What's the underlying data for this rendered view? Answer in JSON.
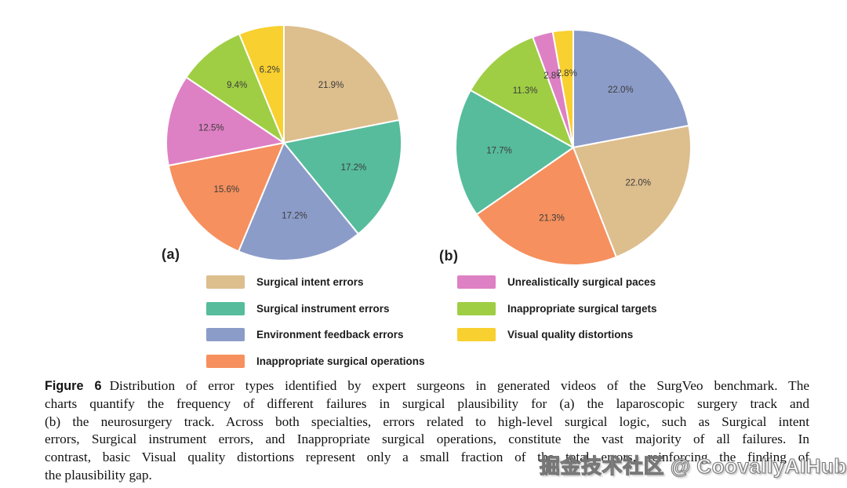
{
  "page": {
    "background": "#ffffff"
  },
  "chart_data": [
    {
      "type": "pie",
      "tag": "(a)",
      "track": "laparoscopic surgery track",
      "start_angle_deg": 0,
      "direction": "clockwise",
      "slices": [
        {
          "name": "Surgical intent errors",
          "value": 21.9,
          "label": "21.9%",
          "color": "#DDBE8D"
        },
        {
          "name": "Surgical instrument errors",
          "value": 17.2,
          "label": "17.2%",
          "color": "#56BC9C"
        },
        {
          "name": "Environment feedback errors",
          "value": 17.2,
          "label": "17.2%",
          "color": "#8C9CC9"
        },
        {
          "name": "Inappropriate surgical operations",
          "value": 15.6,
          "label": "15.6%",
          "color": "#F6905E"
        },
        {
          "name": "Unrealistically surgical paces",
          "value": 12.5,
          "label": "12.5%",
          "color": "#DE80C4"
        },
        {
          "name": "Inappropriate surgical targets",
          "value": 9.4,
          "label": "9.4%",
          "color": "#9FCE44"
        },
        {
          "name": "Visual quality distortions",
          "value": 6.2,
          "label": "6.2%",
          "color": "#F8D02F"
        }
      ]
    },
    {
      "type": "pie",
      "tag": "(b)",
      "track": "neurosurgery track",
      "start_angle_deg": 0,
      "direction": "clockwise",
      "slices": [
        {
          "name": "Environment feedback errors",
          "value": 22.0,
          "label": "22.0%",
          "color": "#8C9CC9"
        },
        {
          "name": "Surgical intent errors",
          "value": 22.0,
          "label": "22.0%",
          "color": "#DDBE8D"
        },
        {
          "name": "Inappropriate surgical operations",
          "value": 21.3,
          "label": "21.3%",
          "color": "#F6905E"
        },
        {
          "name": "Surgical instrument errors",
          "value": 17.7,
          "label": "17.7%",
          "color": "#56BC9C"
        },
        {
          "name": "Inappropriate surgical targets",
          "value": 11.3,
          "label": "11.3%",
          "color": "#9FCE44"
        },
        {
          "name": "Unrealistically surgical paces",
          "value": 2.8,
          "label": "2.8%",
          "color": "#DE80C4"
        },
        {
          "name": "Visual quality distortions",
          "value": 2.8,
          "label": "2.8%",
          "color": "#F8D02F"
        }
      ]
    }
  ],
  "legend": {
    "columns": [
      {
        "items": [
          {
            "label": "Surgical intent errors",
            "color": "#DDBE8D"
          },
          {
            "label": "Surgical instrument errors",
            "color": "#56BC9C"
          },
          {
            "label": "Environment feedback errors",
            "color": "#8C9CC9"
          },
          {
            "label": "Inappropriate surgical operations",
            "color": "#F6905E"
          }
        ]
      },
      {
        "items": [
          {
            "label": "Unrealistically surgical paces",
            "color": "#DE80C4"
          },
          {
            "label": "Inappropriate surgical targets",
            "color": "#9FCE44"
          },
          {
            "label": "Visual quality distortions",
            "color": "#F8D02F"
          }
        ]
      }
    ]
  },
  "caption": {
    "tag": "Figure 6",
    "lines": [
      "Distribution of error types identified by expert surgeons in generated videos of the SurgVeo benchmark. The",
      "charts quantify the frequency of different failures in surgical plausibility for (a) the laparoscopic surgery track and",
      "(b) the neurosurgery track. Across both specialties, errors related to high-level surgical logic, such as Surgical intent",
      "errors, Surgical instrument errors, and Inappropriate surgical operations, constitute the vast majority of all failures. In",
      "contrast, basic Visual quality distortions represent only a small fraction of the total errors, reinforcing the finding of",
      "the plausibility gap."
    ]
  },
  "watermark": {
    "text": "掘金技术社区 @ CoovallyAIHub",
    "color": "#ffffff"
  }
}
